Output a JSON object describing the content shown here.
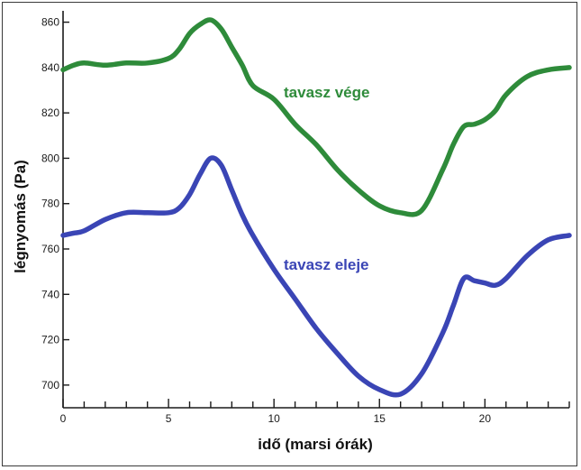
{
  "chart_data": {
    "type": "line",
    "title": "",
    "xlabel": "idő (marsi órák)",
    "ylabel": "légnyomás (Pa)",
    "xlim": [
      0,
      24
    ],
    "ylim": [
      690,
      865
    ],
    "xticks": [
      0,
      5,
      10,
      15,
      20
    ],
    "xticks_minor_step": 1,
    "yticks": [
      700,
      720,
      740,
      760,
      780,
      800,
      820,
      840,
      860
    ],
    "grid": false,
    "series": [
      {
        "name": "tavasz vége",
        "color": "#2e8b3a",
        "x": [
          0,
          0.5,
          1,
          2,
          3,
          4,
          5,
          5.5,
          6,
          6.5,
          7,
          7.5,
          8,
          8.5,
          9,
          10,
          11,
          12,
          13,
          14,
          15,
          16,
          17,
          18,
          18.5,
          19,
          19.5,
          20,
          20.5,
          21,
          22,
          23,
          24
        ],
        "y": [
          839,
          841,
          842,
          841,
          842,
          842,
          844,
          848,
          855,
          859,
          861,
          857,
          849,
          841,
          832,
          826,
          815,
          806,
          795,
          786,
          779,
          776,
          777,
          795,
          806,
          814,
          815,
          817,
          821,
          828,
          836,
          839,
          840
        ]
      },
      {
        "name": "tavasz eleje",
        "color": "#3a45b5",
        "x": [
          0,
          0.5,
          1,
          2,
          3,
          4,
          5,
          5.5,
          6,
          6.5,
          7,
          7.5,
          8,
          8.5,
          9,
          10,
          11,
          12,
          13,
          14,
          15,
          16,
          17,
          18,
          18.5,
          19,
          19.5,
          20,
          20.5,
          21,
          22,
          23,
          24
        ],
        "y": [
          766,
          767,
          768,
          773,
          776,
          776,
          776,
          778,
          784,
          793,
          800,
          797,
          786,
          775,
          766,
          751,
          738,
          725,
          714,
          704,
          698,
          696,
          705,
          723,
          735,
          747,
          746,
          745,
          744,
          747,
          757,
          764,
          766
        ]
      }
    ],
    "annotations": [
      {
        "text": "tavasz vége",
        "color": "#2e8b3a"
      },
      {
        "text": "tavasz eleje",
        "color": "#3a45b5"
      }
    ]
  }
}
